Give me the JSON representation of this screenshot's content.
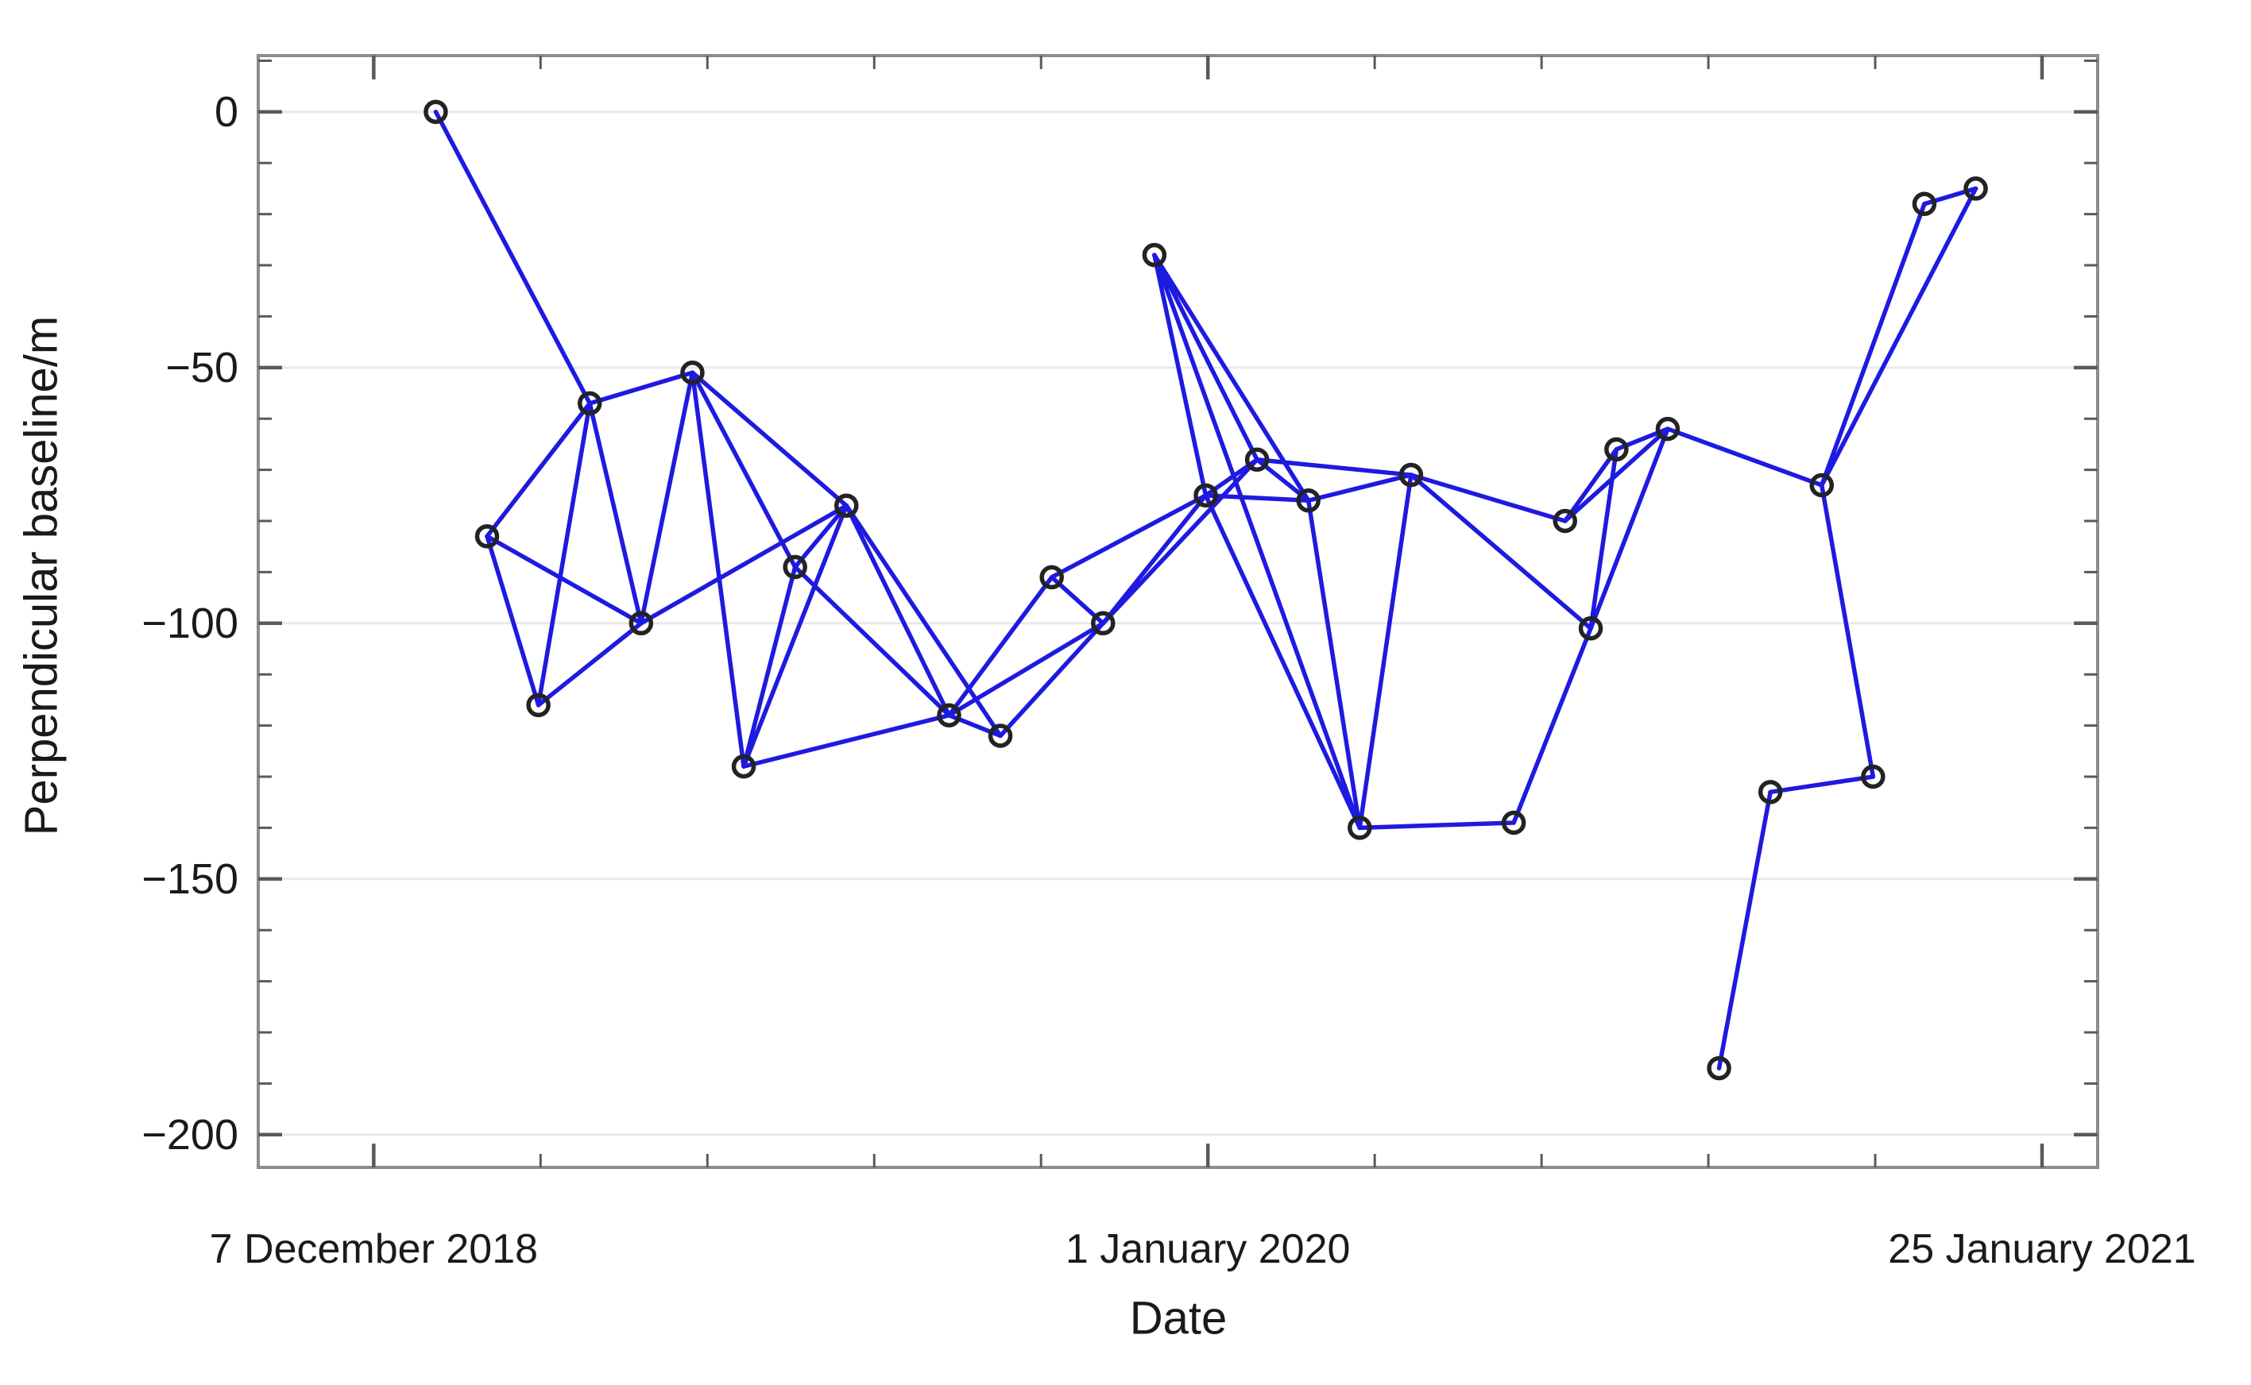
{
  "figure_title": "",
  "axes": {
    "x_label": "Date",
    "y_label": "Perpendicular baseline/m"
  },
  "colors": {
    "edge_blue": "#1e1ae0",
    "marker_ring": "#232323",
    "gridline": "#e9e9e9",
    "frame": "#8c8c8c",
    "tick": "#5a5a5a",
    "text": "#1a1a1a",
    "background": "#ffffff"
  },
  "chart_data": {
    "type": "scatter",
    "subtype": "insar-baseline-network",
    "title": "",
    "xlabel": "Date",
    "ylabel": "Perpendicular baseline/m",
    "grid": "horizontal",
    "legend": "none",
    "xlim_dates": [
      "2018-10-14",
      "2021-02-20"
    ],
    "ylim": [
      -206.4,
      11
    ],
    "x_ticks": [
      {
        "date": "2018-12-07",
        "label": "7 December 2018"
      },
      {
        "date": "2020-01-01",
        "label": "1 January 2020"
      },
      {
        "date": "2021-01-25",
        "label": "25 January 2021"
      }
    ],
    "x_minor_tick_step_days": 78,
    "y_ticks": [
      {
        "value": 0,
        "label": "0"
      },
      {
        "value": -50,
        "label": "−50"
      },
      {
        "value": -100,
        "label": "−100"
      },
      {
        "value": -150,
        "label": "−150"
      },
      {
        "value": -200,
        "label": "−200"
      }
    ],
    "y_minor_tick_step": 10,
    "nodes": [
      {
        "date": "2019-01-05",
        "baseline_m": 0
      },
      {
        "date": "2019-01-29",
        "baseline_m": -83
      },
      {
        "date": "2019-02-22",
        "baseline_m": -116
      },
      {
        "date": "2019-03-18",
        "baseline_m": -57
      },
      {
        "date": "2019-04-11",
        "baseline_m": -100
      },
      {
        "date": "2019-05-05",
        "baseline_m": -51
      },
      {
        "date": "2019-05-29",
        "baseline_m": -128
      },
      {
        "date": "2019-06-22",
        "baseline_m": -89
      },
      {
        "date": "2019-07-16",
        "baseline_m": -77
      },
      {
        "date": "2019-09-02",
        "baseline_m": -118
      },
      {
        "date": "2019-09-26",
        "baseline_m": -122
      },
      {
        "date": "2019-10-20",
        "baseline_m": -91
      },
      {
        "date": "2019-11-13",
        "baseline_m": -100
      },
      {
        "date": "2019-12-07",
        "baseline_m": -28
      },
      {
        "date": "2019-12-31",
        "baseline_m": -75
      },
      {
        "date": "2020-01-24",
        "baseline_m": -68
      },
      {
        "date": "2020-02-17",
        "baseline_m": -76
      },
      {
        "date": "2020-03-12",
        "baseline_m": -140
      },
      {
        "date": "2020-04-05",
        "baseline_m": -71
      },
      {
        "date": "2020-05-23",
        "baseline_m": -139
      },
      {
        "date": "2020-06-16",
        "baseline_m": -80
      },
      {
        "date": "2020-06-28",
        "baseline_m": -101
      },
      {
        "date": "2020-07-10",
        "baseline_m": -66
      },
      {
        "date": "2020-08-03",
        "baseline_m": -62
      },
      {
        "date": "2020-08-27",
        "baseline_m": -187
      },
      {
        "date": "2020-09-20",
        "baseline_m": -133
      },
      {
        "date": "2020-10-14",
        "baseline_m": -73
      },
      {
        "date": "2020-11-07",
        "baseline_m": -130
      },
      {
        "date": "2020-12-01",
        "baseline_m": -18
      },
      {
        "date": "2020-12-25",
        "baseline_m": -15
      }
    ],
    "edges": [
      [
        0,
        3
      ],
      [
        1,
        2
      ],
      [
        1,
        3
      ],
      [
        1,
        4
      ],
      [
        2,
        3
      ],
      [
        2,
        4
      ],
      [
        3,
        4
      ],
      [
        3,
        5
      ],
      [
        4,
        5
      ],
      [
        4,
        8
      ],
      [
        5,
        6
      ],
      [
        5,
        7
      ],
      [
        5,
        8
      ],
      [
        6,
        7
      ],
      [
        6,
        8
      ],
      [
        6,
        9
      ],
      [
        7,
        8
      ],
      [
        7,
        9
      ],
      [
        8,
        9
      ],
      [
        8,
        10
      ],
      [
        9,
        10
      ],
      [
        9,
        11
      ],
      [
        9,
        12
      ],
      [
        10,
        12
      ],
      [
        11,
        12
      ],
      [
        11,
        14
      ],
      [
        12,
        14
      ],
      [
        12,
        15
      ],
      [
        13,
        14
      ],
      [
        13,
        15
      ],
      [
        13,
        16
      ],
      [
        13,
        17
      ],
      [
        14,
        15
      ],
      [
        14,
        16
      ],
      [
        14,
        17
      ],
      [
        15,
        16
      ],
      [
        15,
        18
      ],
      [
        16,
        17
      ],
      [
        16,
        18
      ],
      [
        17,
        18
      ],
      [
        17,
        19
      ],
      [
        18,
        20
      ],
      [
        18,
        21
      ],
      [
        19,
        21
      ],
      [
        20,
        22
      ],
      [
        20,
        23
      ],
      [
        21,
        22
      ],
      [
        21,
        23
      ],
      [
        22,
        23
      ],
      [
        23,
        26
      ],
      [
        24,
        25
      ],
      [
        25,
        27
      ],
      [
        26,
        27
      ],
      [
        26,
        28
      ],
      [
        26,
        29
      ],
      [
        28,
        29
      ]
    ]
  }
}
